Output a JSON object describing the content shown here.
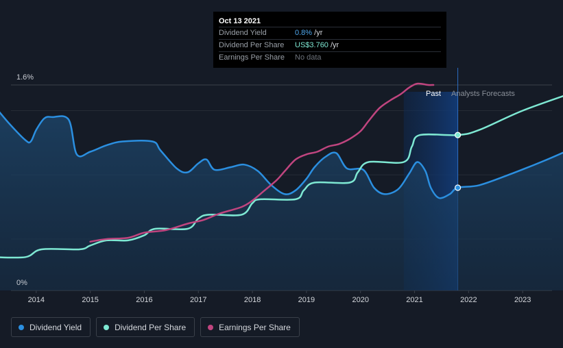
{
  "chart_data": {
    "type": "line",
    "y_axis": {
      "top_label": "1.6%",
      "bottom_label": "0%",
      "ylim": [
        0,
        1.6
      ]
    },
    "x_ticks": [
      "2014",
      "2015",
      "2016",
      "2017",
      "2018",
      "2019",
      "2020",
      "2021",
      "2022",
      "2023"
    ],
    "xlim": [
      2013.0,
      2024.0
    ],
    "past_label": "Past",
    "forecast_label": "Analysts Forecasts",
    "highlight_range": [
      2020.8,
      2021.8
    ],
    "divider_x": 2021.8,
    "series": [
      {
        "name": "Dividend Yield",
        "color": "#2b8fe0",
        "area": true,
        "points": [
          [
            2013.2,
            1.45
          ],
          [
            2013.5,
            1.3
          ],
          [
            2013.8,
            1.17
          ],
          [
            2013.9,
            1.16
          ],
          [
            2014.0,
            1.25
          ],
          [
            2014.15,
            1.34
          ],
          [
            2014.3,
            1.35
          ],
          [
            2014.6,
            1.33
          ],
          [
            2014.75,
            1.06
          ],
          [
            2015.0,
            1.08
          ],
          [
            2015.3,
            1.13
          ],
          [
            2015.6,
            1.16
          ],
          [
            2016.15,
            1.16
          ],
          [
            2016.3,
            1.09
          ],
          [
            2016.6,
            0.95
          ],
          [
            2016.8,
            0.92
          ],
          [
            2017.0,
            0.99
          ],
          [
            2017.15,
            1.02
          ],
          [
            2017.3,
            0.94
          ],
          [
            2017.6,
            0.96
          ],
          [
            2017.85,
            0.98
          ],
          [
            2018.1,
            0.93
          ],
          [
            2018.35,
            0.82
          ],
          [
            2018.6,
            0.75
          ],
          [
            2018.8,
            0.78
          ],
          [
            2019.0,
            0.87
          ],
          [
            2019.15,
            0.96
          ],
          [
            2019.35,
            1.04
          ],
          [
            2019.55,
            1.07
          ],
          [
            2019.75,
            0.95
          ],
          [
            2020.05,
            0.94
          ],
          [
            2020.25,
            0.8
          ],
          [
            2020.45,
            0.75
          ],
          [
            2020.7,
            0.79
          ],
          [
            2020.9,
            0.91
          ],
          [
            2021.05,
            1.0
          ],
          [
            2021.2,
            0.93
          ],
          [
            2021.3,
            0.8
          ],
          [
            2021.45,
            0.72
          ],
          [
            2021.65,
            0.75
          ],
          [
            2021.8,
            0.8
          ],
          [
            2022.2,
            0.82
          ],
          [
            2022.8,
            0.91
          ],
          [
            2023.4,
            1.01
          ],
          [
            2024.0,
            1.12
          ]
        ],
        "forecast_from": 2021.8,
        "marker": [
          2021.8,
          0.8
        ]
      },
      {
        "name": "Dividend Per Share",
        "color": "#7ee8d3",
        "area": false,
        "points": [
          [
            2013.2,
            0.26
          ],
          [
            2013.8,
            0.26
          ],
          [
            2014.1,
            0.32
          ],
          [
            2014.8,
            0.32
          ],
          [
            2015.0,
            0.35
          ],
          [
            2015.3,
            0.39
          ],
          [
            2015.7,
            0.39
          ],
          [
            2016.0,
            0.43
          ],
          [
            2016.2,
            0.48
          ],
          [
            2016.8,
            0.48
          ],
          [
            2017.0,
            0.56
          ],
          [
            2017.2,
            0.59
          ],
          [
            2017.8,
            0.59
          ],
          [
            2018.0,
            0.68
          ],
          [
            2018.15,
            0.71
          ],
          [
            2018.8,
            0.71
          ],
          [
            2018.95,
            0.78
          ],
          [
            2019.15,
            0.84
          ],
          [
            2019.8,
            0.84
          ],
          [
            2019.95,
            0.92
          ],
          [
            2020.15,
            1.0
          ],
          [
            2020.8,
            1.0
          ],
          [
            2020.95,
            1.12
          ],
          [
            2021.1,
            1.21
          ],
          [
            2021.8,
            1.21
          ],
          [
            2022.2,
            1.25
          ],
          [
            2023.0,
            1.4
          ],
          [
            2024.0,
            1.55
          ]
        ],
        "forecast_from": 2021.8,
        "marker": [
          2021.8,
          1.21
        ]
      },
      {
        "name": "Earnings Per Share",
        "color": "#c0457f",
        "area": false,
        "points": [
          [
            2015.0,
            0.38
          ],
          [
            2015.3,
            0.4
          ],
          [
            2015.7,
            0.41
          ],
          [
            2016.0,
            0.45
          ],
          [
            2016.4,
            0.47
          ],
          [
            2016.8,
            0.52
          ],
          [
            2017.1,
            0.55
          ],
          [
            2017.4,
            0.6
          ],
          [
            2017.8,
            0.65
          ],
          [
            2018.0,
            0.7
          ],
          [
            2018.2,
            0.77
          ],
          [
            2018.45,
            0.86
          ],
          [
            2018.6,
            0.93
          ],
          [
            2018.8,
            1.02
          ],
          [
            2019.0,
            1.06
          ],
          [
            2019.2,
            1.08
          ],
          [
            2019.4,
            1.12
          ],
          [
            2019.6,
            1.14
          ],
          [
            2019.8,
            1.18
          ],
          [
            2020.0,
            1.24
          ],
          [
            2020.15,
            1.32
          ],
          [
            2020.35,
            1.42
          ],
          [
            2020.55,
            1.48
          ],
          [
            2020.75,
            1.53
          ],
          [
            2020.9,
            1.58
          ],
          [
            2021.05,
            1.61
          ],
          [
            2021.25,
            1.6
          ],
          [
            2021.35,
            1.6
          ]
        ],
        "forecast_from": null,
        "marker": null
      }
    ],
    "tooltip": {
      "date": "Oct 13 2021",
      "rows": [
        {
          "name": "Dividend Yield",
          "value": "0.8%",
          "unit": " /yr",
          "style": "v-blue"
        },
        {
          "name": "Dividend Per Share",
          "value": "US$3.760",
          "unit": " /yr",
          "style": "v-teal"
        },
        {
          "name": "Earnings Per Share",
          "value": "No data",
          "unit": "",
          "style": "v-nodata"
        }
      ]
    },
    "legend": [
      {
        "label": "Dividend Yield",
        "color": "#2b8fe0"
      },
      {
        "label": "Dividend Per Share",
        "color": "#7ee8d3"
      },
      {
        "label": "Earnings Per Share",
        "color": "#c0457f"
      }
    ]
  }
}
